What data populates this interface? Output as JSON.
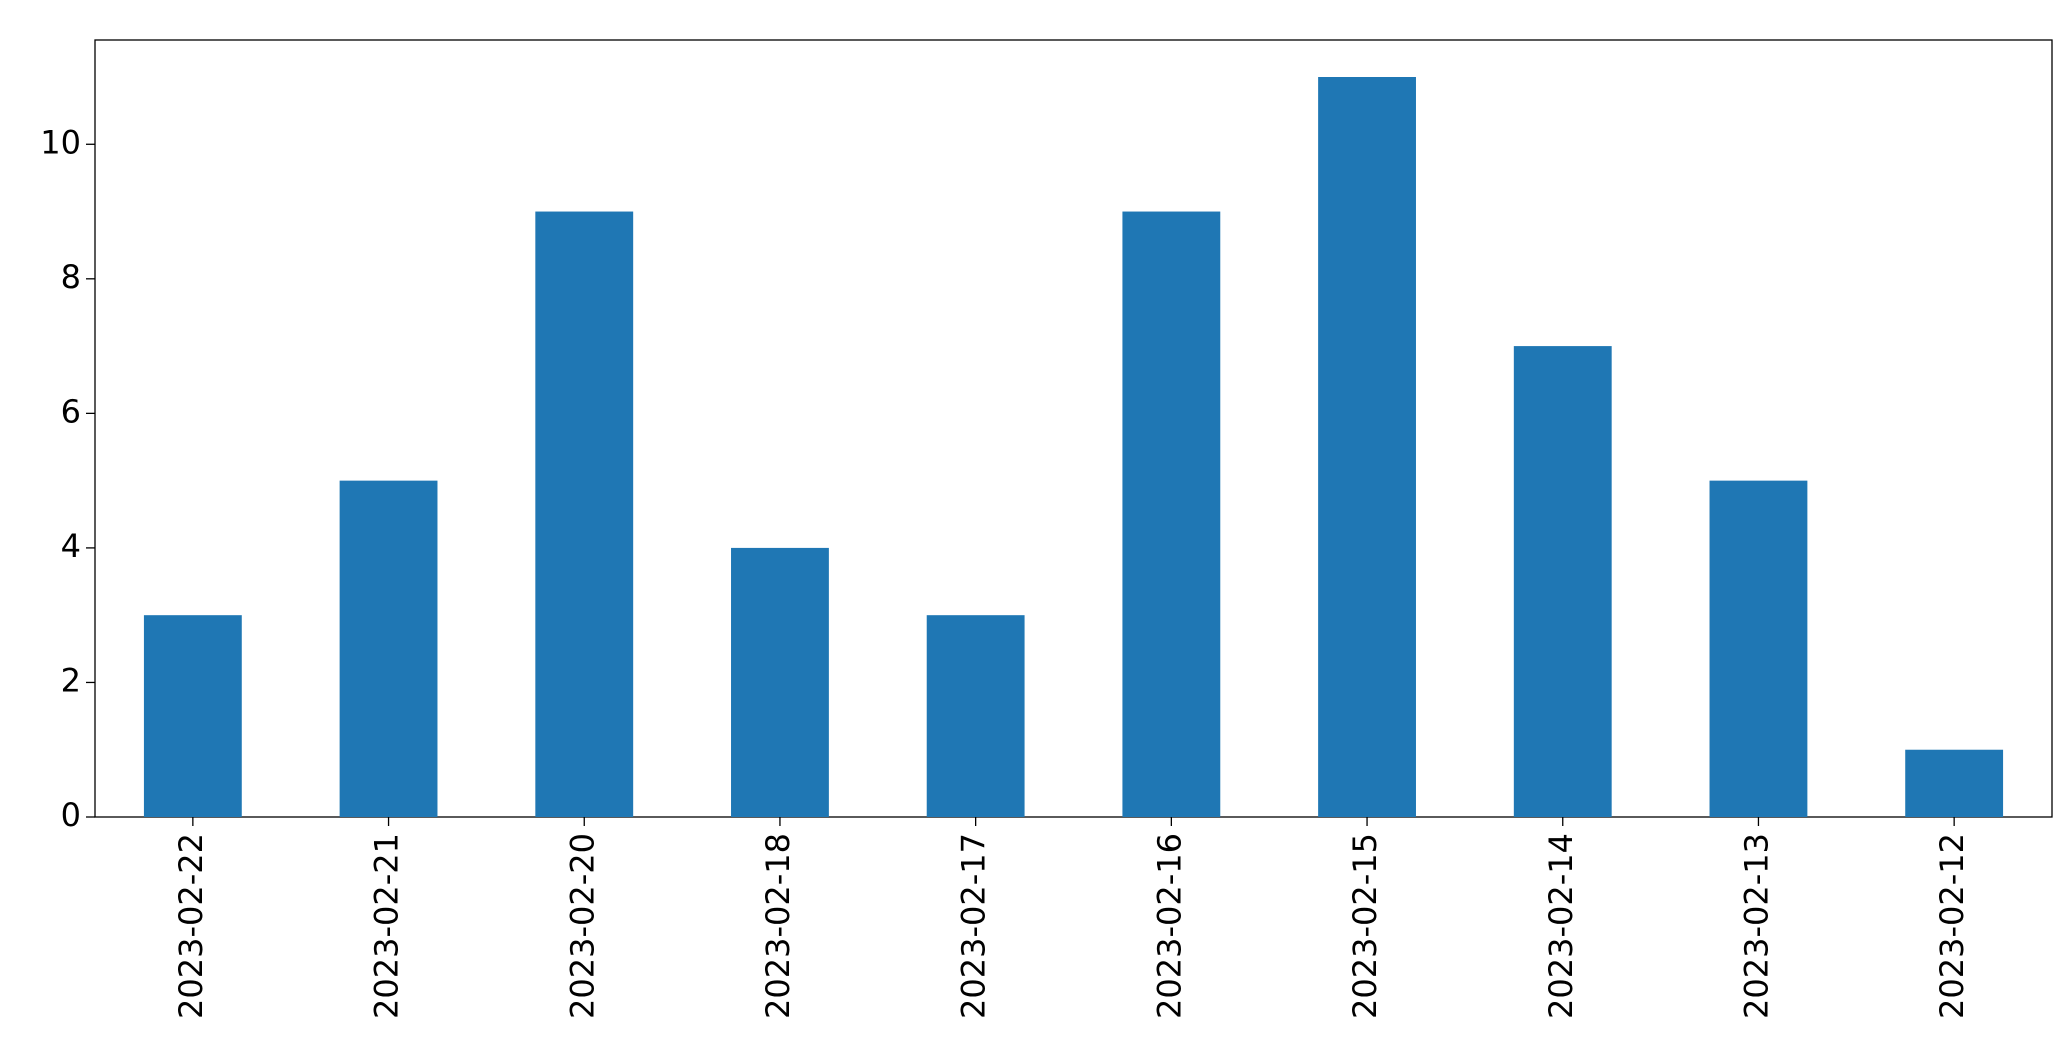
{
  "chart_data": {
    "type": "bar",
    "categories": [
      "2023-02-22",
      "2023-02-21",
      "2023-02-20",
      "2023-02-18",
      "2023-02-17",
      "2023-02-16",
      "2023-02-15",
      "2023-02-14",
      "2023-02-13",
      "2023-02-12"
    ],
    "values": [
      3,
      5,
      9,
      4,
      3,
      9,
      11,
      7,
      5,
      1
    ],
    "color": "#1f77b4",
    "ylim": [
      0,
      11.55
    ],
    "yticks": [
      0,
      2,
      4,
      6,
      8,
      10
    ],
    "grid": false
  }
}
